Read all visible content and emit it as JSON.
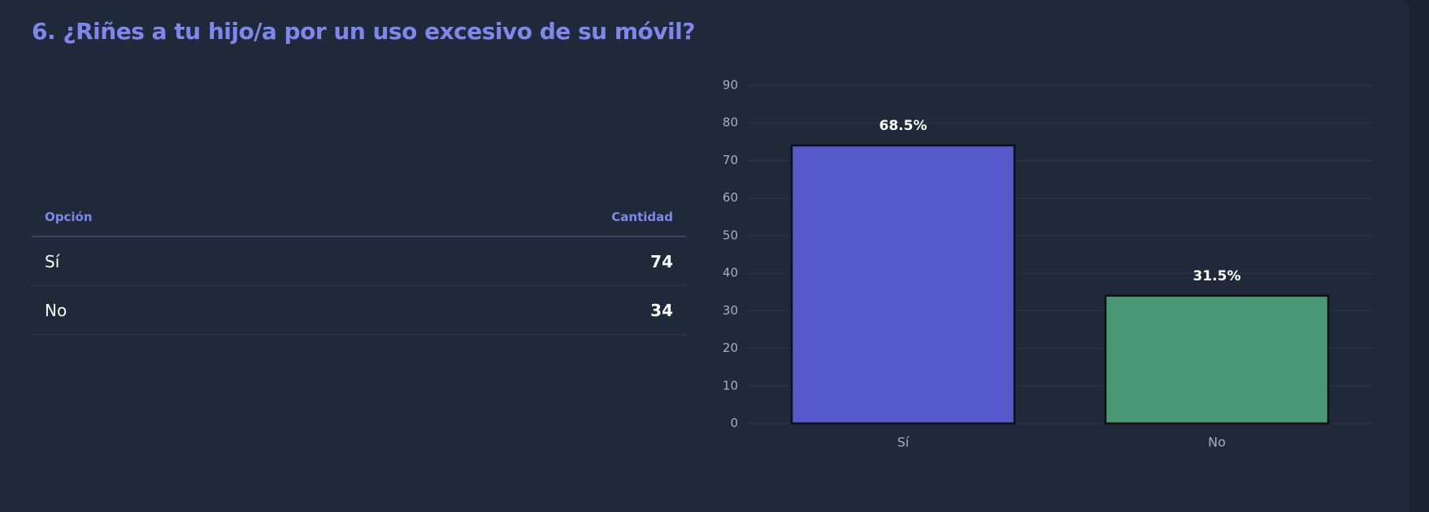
{
  "header": {
    "title": "6. ¿Riñes a tu hijo/a por un uso excesivo de su móvil?"
  },
  "table": {
    "headers": [
      "Opción",
      "Cantidad"
    ]
  },
  "chart_data": {
    "type": "bar",
    "categories": [
      "Sí",
      "No"
    ],
    "values": [
      74,
      34
    ],
    "bar_labels": [
      "68.5%",
      "31.5%"
    ],
    "colors": [
      "#5659c9",
      "#4a9775"
    ],
    "ylim": [
      0,
      90
    ],
    "yticks": [
      0,
      10,
      20,
      30,
      40,
      50,
      60,
      70,
      80,
      90
    ],
    "grid": true
  }
}
